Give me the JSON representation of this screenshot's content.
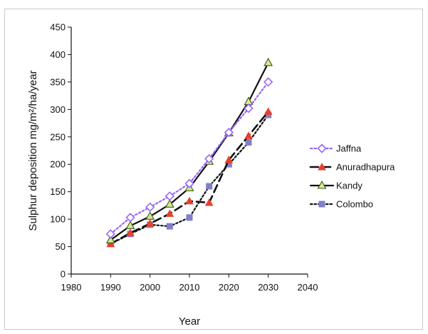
{
  "chart_data": {
    "type": "line",
    "xlabel": "Year",
    "ylabel": "Sulphur deposition mg/m²/ha/year",
    "xlim": [
      1980,
      2040
    ],
    "ylim": [
      0,
      450
    ],
    "xticks": [
      1980,
      1990,
      2000,
      2010,
      2020,
      2030,
      2040
    ],
    "yticks": [
      0,
      50,
      100,
      150,
      200,
      250,
      300,
      350,
      400,
      450
    ],
    "grid": false,
    "legend_position": "right",
    "series": [
      {
        "name": "Jaffna",
        "color": "#9966ff",
        "line_style": "dotted",
        "marker": "open-diamond",
        "x": [
          1990,
          1995,
          2000,
          2005,
          2010,
          2015,
          2020,
          2025,
          2030
        ],
        "y": [
          73,
          103,
          122,
          142,
          165,
          210,
          258,
          302,
          350
        ]
      },
      {
        "name": "Anuradhapura",
        "color": "#e8402a",
        "line_style": "dashed",
        "marker": "triangle",
        "x": [
          1990,
          1995,
          2000,
          2005,
          2010,
          2015,
          2020,
          2025,
          2030
        ],
        "y": [
          55,
          75,
          92,
          110,
          133,
          130,
          208,
          252,
          296
        ]
      },
      {
        "name": "Kandy",
        "color": "#a8c84a",
        "line_style": "solid",
        "marker": "open-triangle",
        "x": [
          1990,
          1995,
          2000,
          2005,
          2010,
          2015,
          2020,
          2025,
          2030
        ],
        "y": [
          62,
          88,
          105,
          127,
          157,
          205,
          257,
          314,
          385
        ]
      },
      {
        "name": "Colombo",
        "color": "#8080c8",
        "line_style": "dotted",
        "marker": "square",
        "x": [
          1990,
          1995,
          2000,
          2005,
          2010,
          2015,
          2020,
          2025,
          2030
        ],
        "y": [
          55,
          73,
          90,
          87,
          103,
          160,
          200,
          240,
          290
        ]
      }
    ]
  }
}
